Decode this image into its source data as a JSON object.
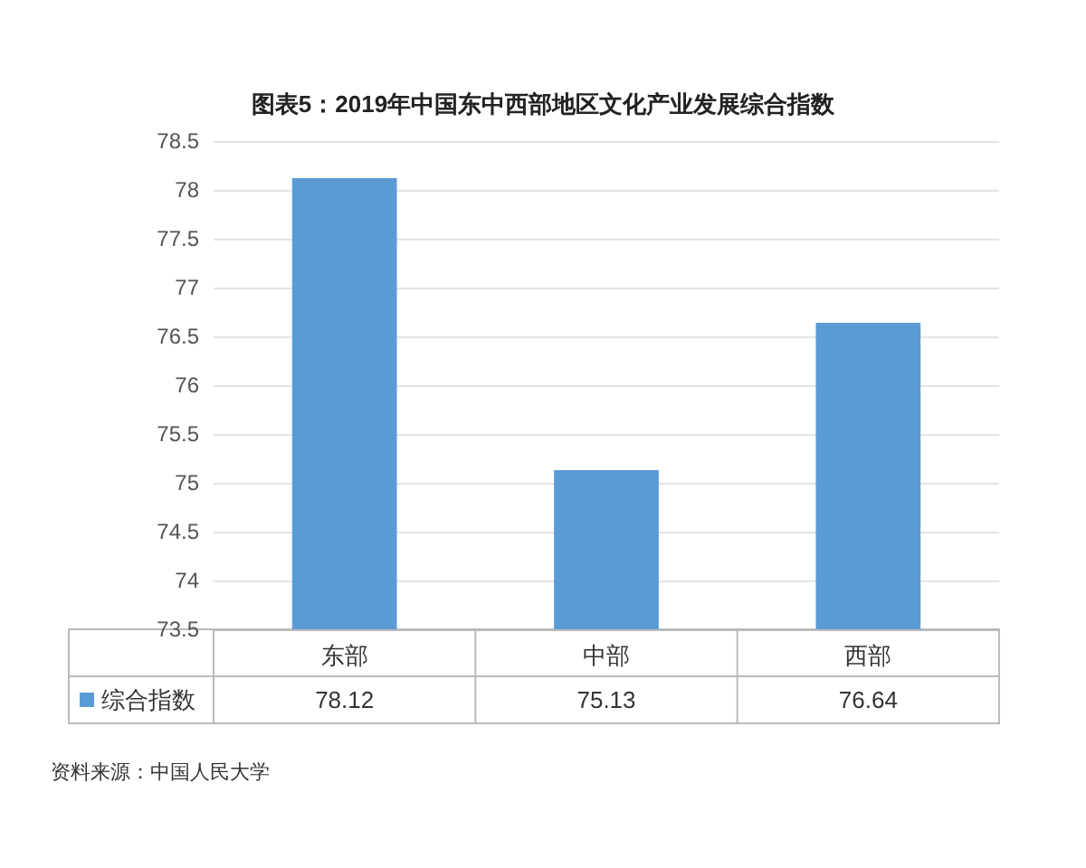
{
  "chart_data": {
    "type": "bar",
    "title": "图表5：2019年中国东中西部地区文化产业发展综合指数",
    "categories": [
      "东部",
      "中部",
      "西部"
    ],
    "series": [
      {
        "name": "综合指数",
        "color": "#5b9bd5",
        "values": [
          78.12,
          75.13,
          76.64
        ]
      }
    ],
    "ylim": [
      73.5,
      78.5
    ],
    "yticks": [
      73.5,
      74,
      74.5,
      75,
      75.5,
      76,
      76.5,
      77,
      77.5,
      78,
      78.5
    ],
    "grid": "y",
    "legend": "bottom",
    "data_labels": true,
    "annotations": [
      "资料来源：中国人民大学"
    ]
  }
}
